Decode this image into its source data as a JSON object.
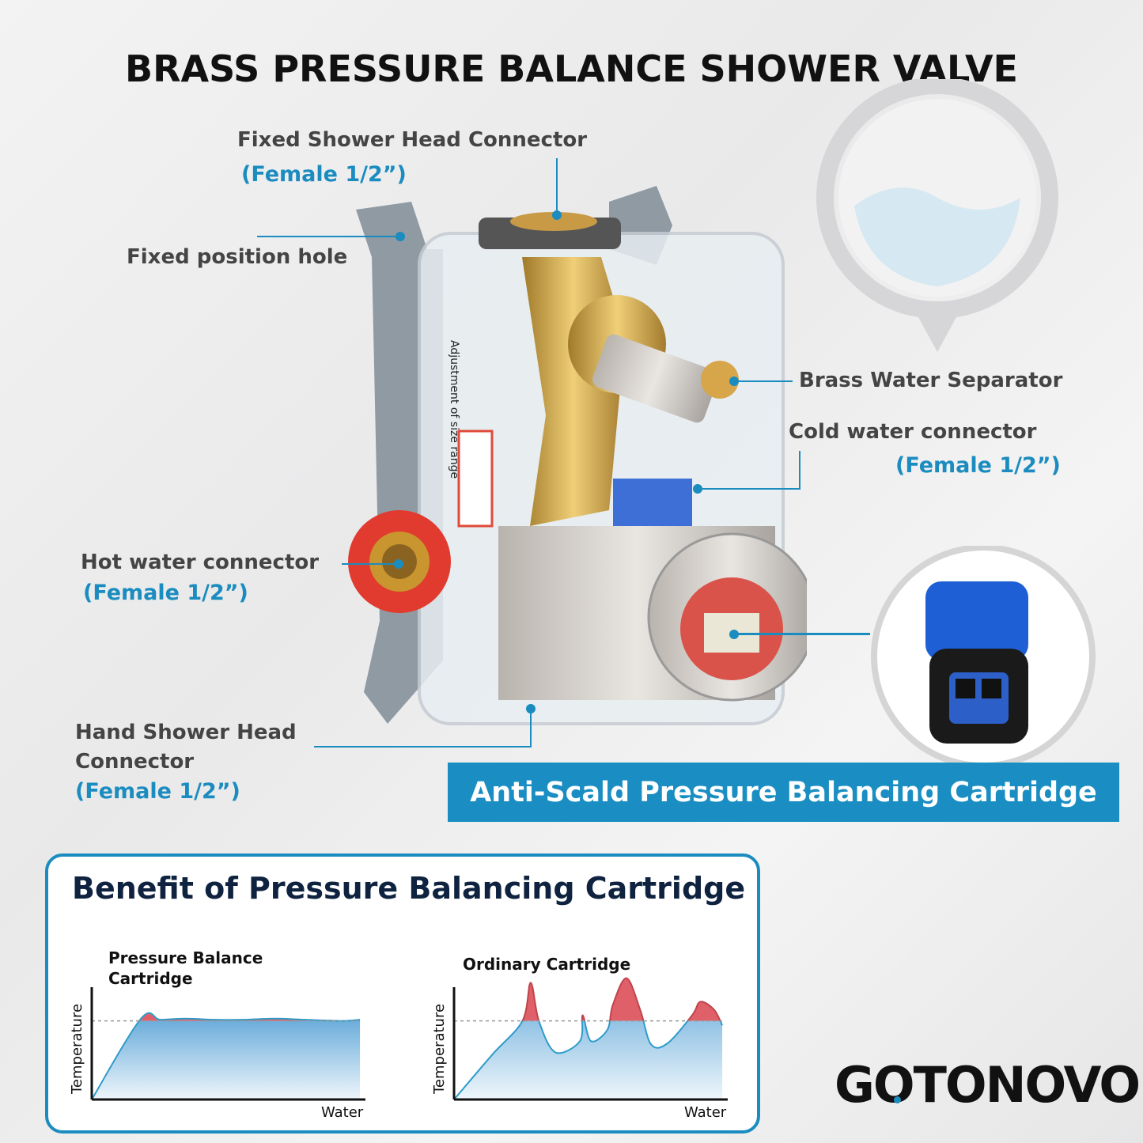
{
  "title": "BRASS PRESSURE BALANCE SHOWER VALVE",
  "callouts": {
    "fixed_shower_head": {
      "label": "Fixed Shower Head Connector",
      "spec": "(Female 1/2”)"
    },
    "fixed_position_hole": {
      "label": "Fixed position hole"
    },
    "brass_water_separator": {
      "label": "Brass Water Separator"
    },
    "cold_water": {
      "label": "Cold water connector",
      "spec": "(Female 1/2”)"
    },
    "hot_water": {
      "label": "Hot water connector",
      "spec": "(Female 1/2”)"
    },
    "hand_shower": {
      "label_line1": "Hand Shower Head",
      "label_line2": "Connector",
      "spec": "(Female 1/2”)"
    }
  },
  "product_sticker_text": "Adjustment of size range",
  "banner": "Anti-Scald Pressure Balancing Cartridge",
  "benefit": {
    "title": "Benefit of Pressure Balancing Cartridge"
  },
  "colors": {
    "accent": "#1b8cbf",
    "navy": "#0f2340",
    "over_temp": "#e0606a",
    "fill_blue": "#6fb0dc"
  },
  "chart_data": [
    {
      "type": "area",
      "title_line1": "Pressure Balance",
      "title_line2": "Cartridge",
      "xlabel": "Water",
      "ylabel": "Temperature",
      "reference_level": 70,
      "x": [
        0,
        18,
        25,
        34,
        45,
        55,
        67,
        78,
        92,
        98
      ],
      "values": [
        0,
        72,
        71,
        72,
        71,
        71,
        72,
        71,
        70,
        71
      ]
    },
    {
      "type": "area",
      "title": "Ordinary Cartridge",
      "xlabel": "Water",
      "ylabel": "Temperature",
      "reference_level": 70,
      "x": [
        0,
        14,
        25,
        28,
        31,
        37,
        46,
        47,
        50,
        56,
        58,
        63,
        68,
        72,
        78,
        87,
        90,
        95,
        98
      ],
      "values": [
        0,
        40,
        70,
        104,
        70,
        42,
        52,
        75,
        52,
        62,
        84,
        108,
        80,
        49,
        50,
        75,
        87,
        80,
        66
      ]
    }
  ],
  "logo": "GOTONOVO"
}
